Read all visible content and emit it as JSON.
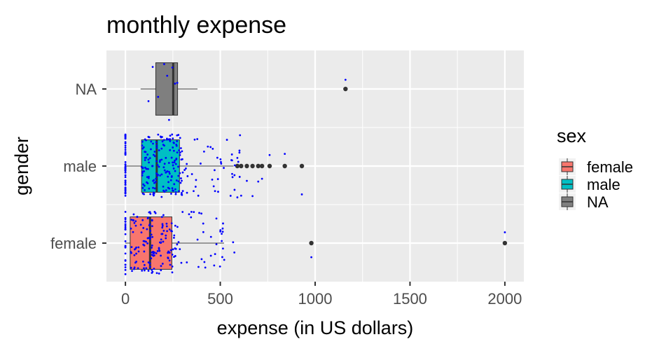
{
  "chart_data": {
    "type": "boxplot",
    "orientation": "horizontal",
    "title": "monthly expense",
    "xlabel": "expense (in US dollars)",
    "ylabel": "gender",
    "xlim": [
      -100,
      2100
    ],
    "xticks": [
      0,
      500,
      1000,
      1500,
      2000
    ],
    "grid": true,
    "legend": {
      "title": "sex",
      "placement": "right",
      "entries": [
        {
          "label": "female",
          "color": "#F8766D"
        },
        {
          "label": "male",
          "color": "#00BFC4"
        },
        {
          "label": "NA",
          "color": "#7F7F7F"
        }
      ]
    },
    "series": [
      {
        "category": "female",
        "color": "#F8766D",
        "min": 0,
        "q1": 25,
        "median": 130,
        "q3": 245,
        "max": 520,
        "outliers": [
          980,
          2000
        ]
      },
      {
        "category": "male",
        "color": "#00BFC4",
        "min": 0,
        "q1": 85,
        "median": 165,
        "q3": 285,
        "max": 570,
        "outliers": [
          590,
          610,
          640,
          670,
          700,
          720,
          760,
          840,
          930
        ]
      },
      {
        "category": "NA",
        "color": "#7F7F7F",
        "min": 80,
        "q1": 160,
        "median": 252,
        "q3": 275,
        "max": 380,
        "outliers": [
          1160
        ]
      }
    ],
    "jitter_color": "#0000FF"
  }
}
